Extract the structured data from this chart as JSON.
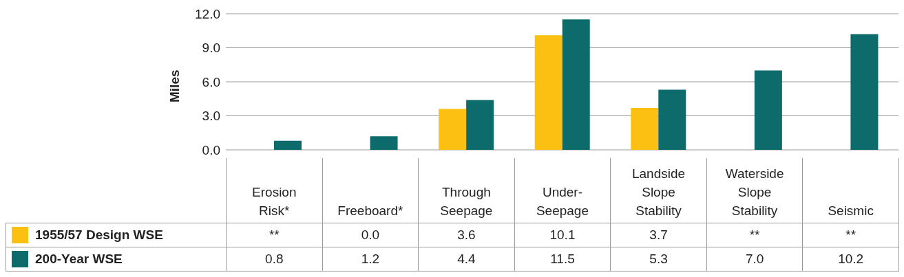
{
  "chart_data": {
    "type": "bar",
    "ylabel": "Miles",
    "categories": [
      "Erosion Risk*",
      "Freeboard*",
      "Through Seepage",
      "Under-Seepage",
      "Landside Slope Stability",
      "Waterside Slope Stability",
      "Seismic"
    ],
    "series": [
      {
        "name": "1955/57 Design WSE",
        "color": "#fcc012",
        "values": [
          null,
          0.0,
          3.6,
          10.1,
          3.7,
          null,
          null
        ],
        "value_labels": [
          "**",
          "0.0",
          "3.6",
          "10.1",
          "3.7",
          "**",
          "**"
        ]
      },
      {
        "name": "200-Year WSE",
        "color": "#0d6b6b",
        "values": [
          0.8,
          1.2,
          4.4,
          11.5,
          5.3,
          7.0,
          10.2
        ],
        "value_labels": [
          "0.8",
          "1.2",
          "4.4",
          "11.5",
          "5.3",
          "7.0",
          "10.2"
        ]
      }
    ],
    "ylim": [
      0,
      12
    ],
    "yticks": [
      {
        "value": 0,
        "label": "0.0"
      },
      {
        "value": 3,
        "label": "3.0"
      },
      {
        "value": 6,
        "label": "6.0"
      },
      {
        "value": 9,
        "label": "9.0"
      },
      {
        "value": 12,
        "label": "12.0"
      }
    ],
    "grid": "y",
    "legend": "bottom"
  }
}
